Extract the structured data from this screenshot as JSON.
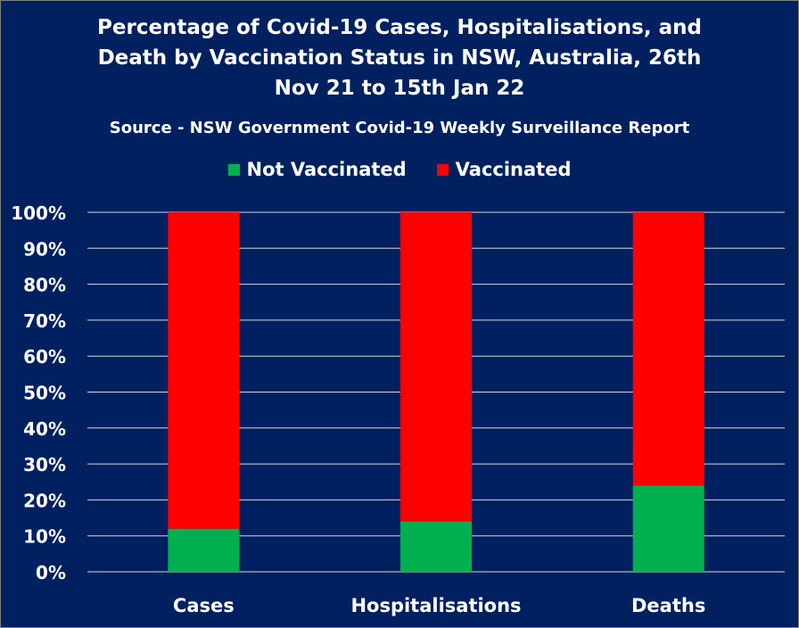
{
  "chart_data": {
    "type": "bar",
    "stacked": true,
    "title": "Percentage of Covid-19 Cases, Hospitalisations, and Death by Vaccination Status in NSW, Australia, 26th Nov 21 to 15th Jan 22",
    "title_lines": [
      "Percentage of Covid-19 Cases, Hospitalisations, and",
      "Death by Vaccination Status in NSW, Australia, 26th",
      "Nov 21 to 15th Jan 22"
    ],
    "subtitle": "Source - NSW Government Covid-19 Weekly Surveillance Report",
    "categories": [
      "Cases",
      "Hospitalisations",
      "Deaths"
    ],
    "series": [
      {
        "name": "Not Vaccinated",
        "color": "#00b050",
        "values": [
          12,
          14,
          24
        ]
      },
      {
        "name": "Vaccinated",
        "color": "#ff0000",
        "values": [
          88,
          86,
          76
        ]
      }
    ],
    "ylim": [
      0,
      100
    ],
    "yticks": [
      "0%",
      "10%",
      "20%",
      "30%",
      "40%",
      "50%",
      "60%",
      "70%",
      "80%",
      "90%",
      "100%"
    ],
    "xlabel": "",
    "ylabel": "",
    "grid": true,
    "legend_position": "top"
  },
  "colors": {
    "background": "#002060",
    "gridline": "#d9d9d9",
    "text": "#ffffff"
  }
}
